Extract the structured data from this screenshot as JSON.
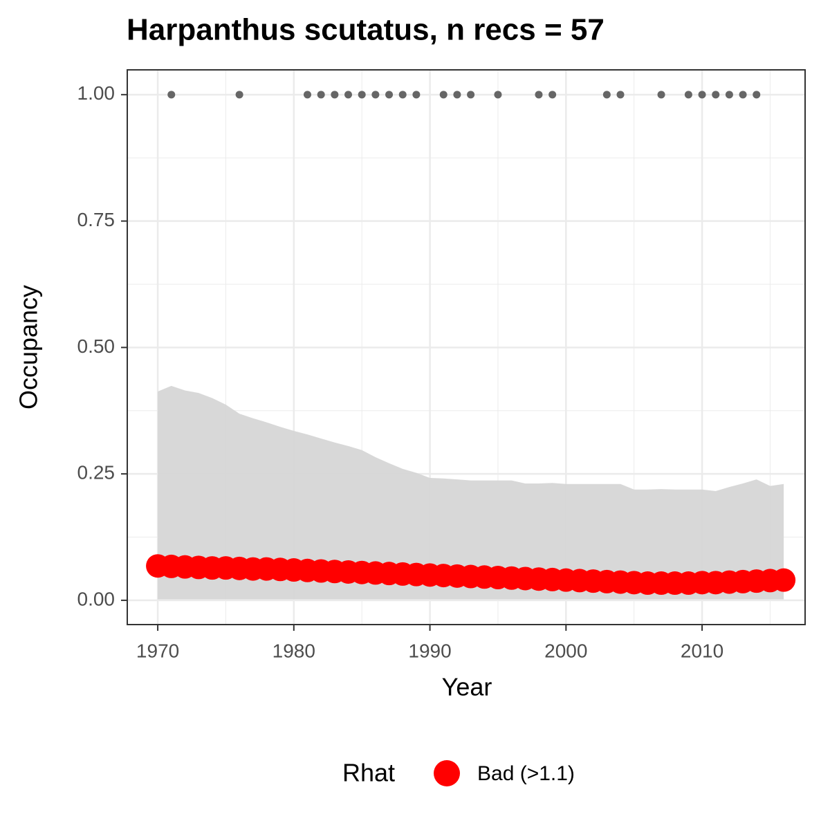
{
  "chart_data": {
    "type": "scatter",
    "title": "Harpanthus scutatus, n recs = 57",
    "x_label": "Year",
    "y_label": "Occupancy",
    "x": [
      1970,
      1971,
      1972,
      1973,
      1974,
      1975,
      1976,
      1977,
      1978,
      1979,
      1980,
      1981,
      1982,
      1983,
      1984,
      1985,
      1986,
      1987,
      1988,
      1989,
      1990,
      1991,
      1992,
      1993,
      1994,
      1995,
      1996,
      1997,
      1998,
      1999,
      2000,
      2001,
      2002,
      2003,
      2004,
      2005,
      2006,
      2007,
      2008,
      2009,
      2010,
      2011,
      2012,
      2013,
      2014,
      2015,
      2016
    ],
    "series": [
      {
        "name": "Bad (>1.1)",
        "color": "#ff0000",
        "values": [
          0.068,
          0.067,
          0.066,
          0.065,
          0.064,
          0.064,
          0.063,
          0.062,
          0.062,
          0.061,
          0.06,
          0.059,
          0.058,
          0.057,
          0.056,
          0.055,
          0.054,
          0.053,
          0.052,
          0.051,
          0.05,
          0.049,
          0.048,
          0.047,
          0.046,
          0.045,
          0.044,
          0.043,
          0.042,
          0.041,
          0.04,
          0.039,
          0.038,
          0.037,
          0.036,
          0.035,
          0.034,
          0.034,
          0.034,
          0.034,
          0.035,
          0.035,
          0.036,
          0.037,
          0.038,
          0.039,
          0.04
        ]
      }
    ],
    "band": {
      "color": "#d6d6d6",
      "upper": [
        0.413,
        0.424,
        0.415,
        0.41,
        0.4,
        0.387,
        0.369,
        0.36,
        0.352,
        0.343,
        0.335,
        0.328,
        0.32,
        0.312,
        0.305,
        0.297,
        0.283,
        0.271,
        0.26,
        0.252,
        0.242,
        0.241,
        0.239,
        0.237,
        0.237,
        0.237,
        0.237,
        0.231,
        0.231,
        0.232,
        0.23,
        0.23,
        0.23,
        0.23,
        0.23,
        0.219,
        0.219,
        0.22,
        0.219,
        0.219,
        0.219,
        0.216,
        0.224,
        0.231,
        0.239,
        0.226,
        0.23
      ],
      "lower": [
        0.002,
        0.002,
        0.002,
        0.002,
        0.002,
        0.002,
        0.002,
        0.002,
        0.002,
        0.002,
        0.002,
        0.002,
        0.002,
        0.002,
        0.002,
        0.002,
        0.002,
        0.002,
        0.002,
        0.002,
        0.002,
        0.002,
        0.002,
        0.002,
        0.002,
        0.002,
        0.002,
        0.002,
        0.002,
        0.002,
        0.002,
        0.002,
        0.002,
        0.002,
        0.002,
        0.002,
        0.002,
        0.002,
        0.002,
        0.002,
        0.002,
        0.002,
        0.002,
        0.002,
        0.002,
        0.002,
        0.002
      ]
    },
    "records": {
      "color": "#666666",
      "x": [
        1971,
        1976,
        1981,
        1982,
        1983,
        1984,
        1985,
        1986,
        1987,
        1988,
        1989,
        1991,
        1992,
        1993,
        1995,
        1998,
        1999,
        2003,
        2004,
        2007,
        2009,
        2010,
        2011,
        2012,
        2013,
        2014
      ],
      "values": [
        1,
        1,
        1,
        1,
        1,
        1,
        1,
        1,
        1,
        1,
        1,
        1,
        1,
        1,
        1,
        1,
        1,
        1,
        1,
        1,
        1,
        1,
        1,
        1,
        1,
        1
      ]
    },
    "legend_title": "Rhat",
    "xlim": [
      1967.76,
      2017.57
    ],
    "ylim": [
      -0.048,
      1.049
    ],
    "xticks": [
      1970,
      1980,
      1990,
      2000,
      2010
    ],
    "yticks": [
      {
        "value": 0,
        "label": "0.00"
      },
      {
        "value": 0.25,
        "label": "0.25"
      },
      {
        "value": 0.5,
        "label": "0.50"
      },
      {
        "value": 0.75,
        "label": "0.75"
      },
      {
        "value": 1,
        "label": "1.00"
      }
    ],
    "grid": true
  }
}
